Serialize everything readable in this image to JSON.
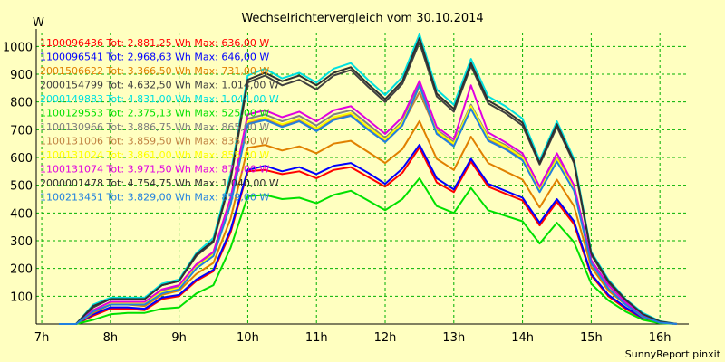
{
  "chart_data": {
    "type": "line",
    "title": "Wechselrichtervergleich vom 30.10.2014",
    "ylabel": "W",
    "xlabel": "",
    "credit": "SunnyReport pinxit",
    "ylim": [
      0,
      1050
    ],
    "xlim": [
      6.92,
      16.42
    ],
    "grid": true,
    "legend_position": "top-left",
    "x_ticks": [
      {
        "value": 7,
        "label": "7h"
      },
      {
        "value": 8,
        "label": "8h"
      },
      {
        "value": 9,
        "label": "9h"
      },
      {
        "value": 10,
        "label": "10h"
      },
      {
        "value": 11,
        "label": "11h"
      },
      {
        "value": 12,
        "label": "12h"
      },
      {
        "value": 13,
        "label": "13h"
      },
      {
        "value": 14,
        "label": "14h"
      },
      {
        "value": 15,
        "label": "15h"
      },
      {
        "value": 16,
        "label": "16h"
      }
    ],
    "y_ticks": [
      100,
      200,
      300,
      400,
      500,
      600,
      700,
      800,
      900,
      1000
    ],
    "x": [
      7.25,
      7.5,
      7.75,
      8.0,
      8.25,
      8.5,
      8.75,
      9.0,
      9.25,
      9.5,
      9.75,
      10.0,
      10.25,
      10.5,
      10.75,
      11.0,
      11.25,
      11.5,
      11.75,
      12.0,
      12.25,
      12.5,
      12.75,
      13.0,
      13.25,
      13.5,
      13.75,
      14.0,
      14.25,
      14.5,
      14.75,
      15.0,
      15.25,
      15.5,
      15.75,
      16.0,
      16.25
    ],
    "series": [
      {
        "name": "1100096436 Tot: 2.881,25 Wh Max: 636,00 W",
        "color": "#ff0000",
        "values": [
          0,
          0,
          30,
          55,
          55,
          50,
          90,
          100,
          155,
          190,
          330,
          550,
          555,
          540,
          550,
          525,
          555,
          565,
          530,
          495,
          545,
          636,
          510,
          475,
          585,
          495,
          470,
          445,
          355,
          440,
          360,
          175,
          100,
          55,
          20,
          5,
          0
        ]
      },
      {
        "name": "1100096541 Tot: 2.968,63 Wh Max: 646,00 W",
        "color": "#0000ff",
        "values": [
          0,
          0,
          35,
          60,
          60,
          55,
          95,
          105,
          160,
          195,
          340,
          555,
          570,
          550,
          565,
          540,
          570,
          580,
          545,
          505,
          560,
          646,
          525,
          485,
          595,
          505,
          480,
          455,
          365,
          450,
          370,
          180,
          105,
          60,
          22,
          5,
          0
        ]
      },
      {
        "name": "2001506622 Tot: 3.366,50 Wh Max: 731,00 W",
        "color": "#e08000",
        "values": [
          0,
          0,
          40,
          70,
          70,
          65,
          105,
          120,
          180,
          220,
          380,
          635,
          645,
          625,
          640,
          615,
          650,
          660,
          620,
          580,
          630,
          731,
          595,
          555,
          675,
          580,
          550,
          520,
          420,
          520,
          425,
          205,
          120,
          70,
          25,
          5,
          0
        ]
      },
      {
        "name": "2000154799 Tot: 4.632,50 Wh Max: 1.014,00 W",
        "color": "#404040",
        "values": [
          0,
          0,
          60,
          90,
          90,
          90,
          140,
          155,
          245,
          295,
          520,
          870,
          895,
          860,
          880,
          845,
          895,
          915,
          855,
          800,
          865,
          1014,
          820,
          765,
          930,
          795,
          760,
          715,
          575,
          710,
          580,
          250,
          150,
          85,
          35,
          8,
          0
        ]
      },
      {
        "name": "2000149883 Tot: 4.831,00 Wh Max: 1.044,00 W",
        "color": "#00e0e0",
        "values": [
          0,
          0,
          70,
          95,
          95,
          95,
          145,
          160,
          255,
          310,
          540,
          895,
          920,
          885,
          905,
          870,
          920,
          940,
          880,
          825,
          890,
          1044,
          845,
          790,
          955,
          820,
          785,
          740,
          590,
          730,
          595,
          260,
          160,
          90,
          40,
          10,
          0
        ]
      },
      {
        "name": "1100129553 Tot: 2.375,13 Wh Max: 525,00 W",
        "color": "#00e000",
        "values": [
          0,
          0,
          15,
          35,
          40,
          40,
          55,
          60,
          110,
          140,
          275,
          460,
          465,
          450,
          455,
          435,
          465,
          480,
          445,
          410,
          450,
          525,
          425,
          400,
          490,
          410,
          390,
          370,
          290,
          365,
          295,
          145,
          85,
          45,
          15,
          3,
          0
        ]
      },
      {
        "name": "1100130966 Tot: 3.886,75 Wh Max: 865,00 W",
        "color": "#808080",
        "values": [
          0,
          0,
          45,
          75,
          75,
          75,
          120,
          135,
          210,
          255,
          445,
          740,
          755,
          730,
          750,
          715,
          755,
          770,
          720,
          670,
          730,
          865,
          700,
          655,
          790,
          675,
          645,
          605,
          485,
          600,
          490,
          225,
          135,
          75,
          30,
          6,
          0
        ]
      },
      {
        "name": "1100131006 Tot: 3.859,50 Wh Max: 835,00 W",
        "color": "#c08040",
        "values": [
          0,
          0,
          45,
          75,
          75,
          75,
          115,
          130,
          205,
          250,
          435,
          725,
          740,
          715,
          735,
          700,
          740,
          755,
          705,
          660,
          720,
          835,
          690,
          645,
          780,
          665,
          635,
          595,
          480,
          590,
          485,
          220,
          130,
          72,
          28,
          6,
          0
        ]
      },
      {
        "name": "1100131024 Tot: 3.861,00 Wh Max: 855,00 W",
        "color": "#ffff00",
        "values": [
          0,
          0,
          45,
          75,
          75,
          75,
          115,
          130,
          205,
          250,
          435,
          730,
          745,
          720,
          740,
          705,
          745,
          760,
          710,
          665,
          725,
          855,
          695,
          650,
          785,
          670,
          640,
          600,
          482,
          595,
          488,
          222,
          132,
          73,
          28,
          6,
          0
        ]
      },
      {
        "name": "1100131074 Tot: 3.971,50 Wh Max: 876,00 W",
        "color": "#e000e0",
        "values": [
          0,
          0,
          50,
          80,
          80,
          80,
          125,
          140,
          215,
          260,
          455,
          755,
          770,
          745,
          765,
          730,
          770,
          785,
          735,
          685,
          745,
          876,
          710,
          665,
          860,
          690,
          655,
          615,
          495,
          615,
          500,
          230,
          140,
          78,
          32,
          7,
          0
        ]
      },
      {
        "name": "2000001478 Tot: 4.754,75 Wh Max: 1.040,00 W",
        "color": "#303030",
        "values": [
          0,
          0,
          65,
          90,
          90,
          90,
          140,
          155,
          250,
          300,
          525,
          880,
          905,
          875,
          895,
          860,
          905,
          925,
          865,
          810,
          875,
          1030,
          830,
          775,
          940,
          805,
          770,
          725,
          580,
          720,
          585,
          255,
          155,
          88,
          36,
          9,
          0
        ]
      },
      {
        "name": "1100213451 Tot: 3.829,00 Wh Max: 859,00 W",
        "color": "#2080e0",
        "values": [
          0,
          0,
          45,
          70,
          70,
          70,
          110,
          125,
          200,
          245,
          430,
          720,
          735,
          710,
          730,
          695,
          735,
          750,
          700,
          655,
          715,
          859,
          685,
          640,
          775,
          660,
          630,
          590,
          475,
          585,
          480,
          218,
          128,
          70,
          27,
          5,
          0
        ]
      }
    ]
  }
}
